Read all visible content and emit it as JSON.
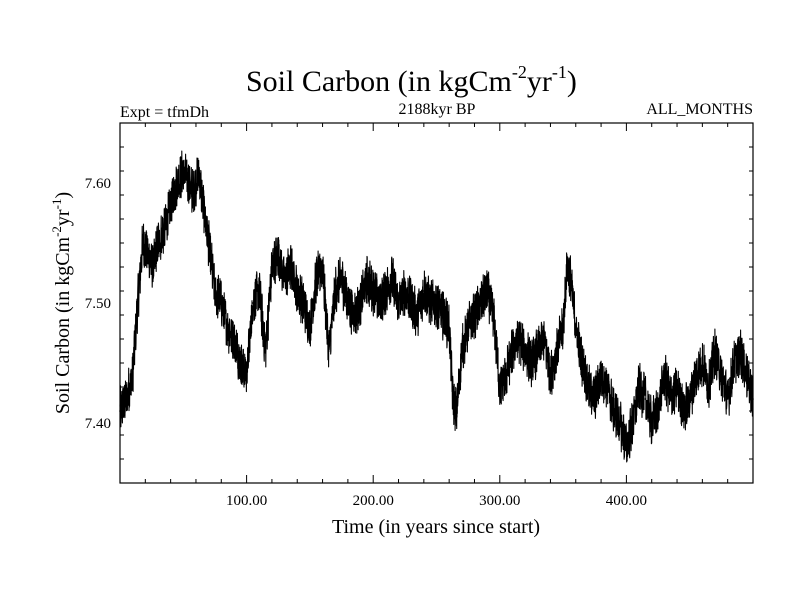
{
  "chart_data": {
    "type": "line",
    "title": "Soil Carbon (in kgCm",
    "title_sup1": "-2",
    "title_mid": "yr",
    "title_sup2": "-1",
    "title_end": ")",
    "subtitle_left": "Expt = tfmDh",
    "subtitle_center": "2188kyr BP",
    "subtitle_right": "ALL_MONTHS",
    "xlabel": "Time (in years since start)",
    "ylabel": "Soil Carbon (in kgCm",
    "ylabel_sup1": "-2",
    "ylabel_mid": "yr",
    "ylabel_sup2": "-1",
    "ylabel_end": ")",
    "xlim": [
      0,
      500
    ],
    "ylim": [
      7.35,
      7.65
    ],
    "xticks": [
      {
        "value": 100,
        "label": "100.00"
      },
      {
        "value": 200,
        "label": "200.00"
      },
      {
        "value": 300,
        "label": "300.00"
      },
      {
        "value": 400,
        "label": "400.00"
      }
    ],
    "yticks": [
      {
        "value": 7.4,
        "label": "7.40"
      },
      {
        "value": 7.5,
        "label": "7.50"
      },
      {
        "value": 7.6,
        "label": "7.60"
      }
    ],
    "line_color": "#000000",
    "series": [
      {
        "x": [
          0,
          5,
          10,
          14,
          18,
          22,
          26,
          30,
          35,
          40,
          45,
          50,
          54,
          58,
          62,
          66,
          70,
          75,
          80,
          85,
          90,
          95,
          100,
          105,
          110,
          115,
          120,
          125,
          130,
          135,
          140,
          145,
          150,
          155,
          160,
          165,
          170,
          175,
          180,
          185,
          190,
          195,
          200,
          205,
          210,
          215,
          220,
          225,
          230,
          235,
          240,
          245,
          250,
          255,
          260,
          263,
          266,
          270,
          275,
          280,
          285,
          290,
          295,
          300,
          305,
          310,
          315,
          320,
          325,
          330,
          335,
          340,
          345,
          350,
          353,
          356,
          360,
          365,
          370,
          375,
          380,
          385,
          390,
          395,
          400,
          405,
          410,
          415,
          420,
          425,
          430,
          435,
          440,
          445,
          450,
          455,
          460,
          465,
          470,
          475,
          480,
          485,
          490,
          495,
          500
        ],
        "y": [
          7.41,
          7.42,
          7.44,
          7.5,
          7.55,
          7.54,
          7.53,
          7.55,
          7.56,
          7.58,
          7.6,
          7.61,
          7.6,
          7.59,
          7.61,
          7.58,
          7.55,
          7.51,
          7.5,
          7.48,
          7.47,
          7.45,
          7.44,
          7.5,
          7.51,
          7.46,
          7.53,
          7.54,
          7.52,
          7.53,
          7.51,
          7.5,
          7.48,
          7.52,
          7.53,
          7.46,
          7.51,
          7.52,
          7.5,
          7.49,
          7.5,
          7.52,
          7.51,
          7.5,
          7.51,
          7.52,
          7.5,
          7.51,
          7.5,
          7.49,
          7.51,
          7.5,
          7.5,
          7.49,
          7.48,
          7.42,
          7.41,
          7.46,
          7.48,
          7.49,
          7.5,
          7.51,
          7.49,
          7.43,
          7.44,
          7.46,
          7.47,
          7.46,
          7.45,
          7.46,
          7.47,
          7.44,
          7.46,
          7.48,
          7.53,
          7.52,
          7.48,
          7.45,
          7.43,
          7.42,
          7.44,
          7.43,
          7.41,
          7.4,
          7.38,
          7.4,
          7.43,
          7.42,
          7.4,
          7.41,
          7.44,
          7.42,
          7.43,
          7.41,
          7.42,
          7.44,
          7.45,
          7.43,
          7.46,
          7.44,
          7.42,
          7.45,
          7.46,
          7.44,
          7.42
        ]
      }
    ]
  }
}
